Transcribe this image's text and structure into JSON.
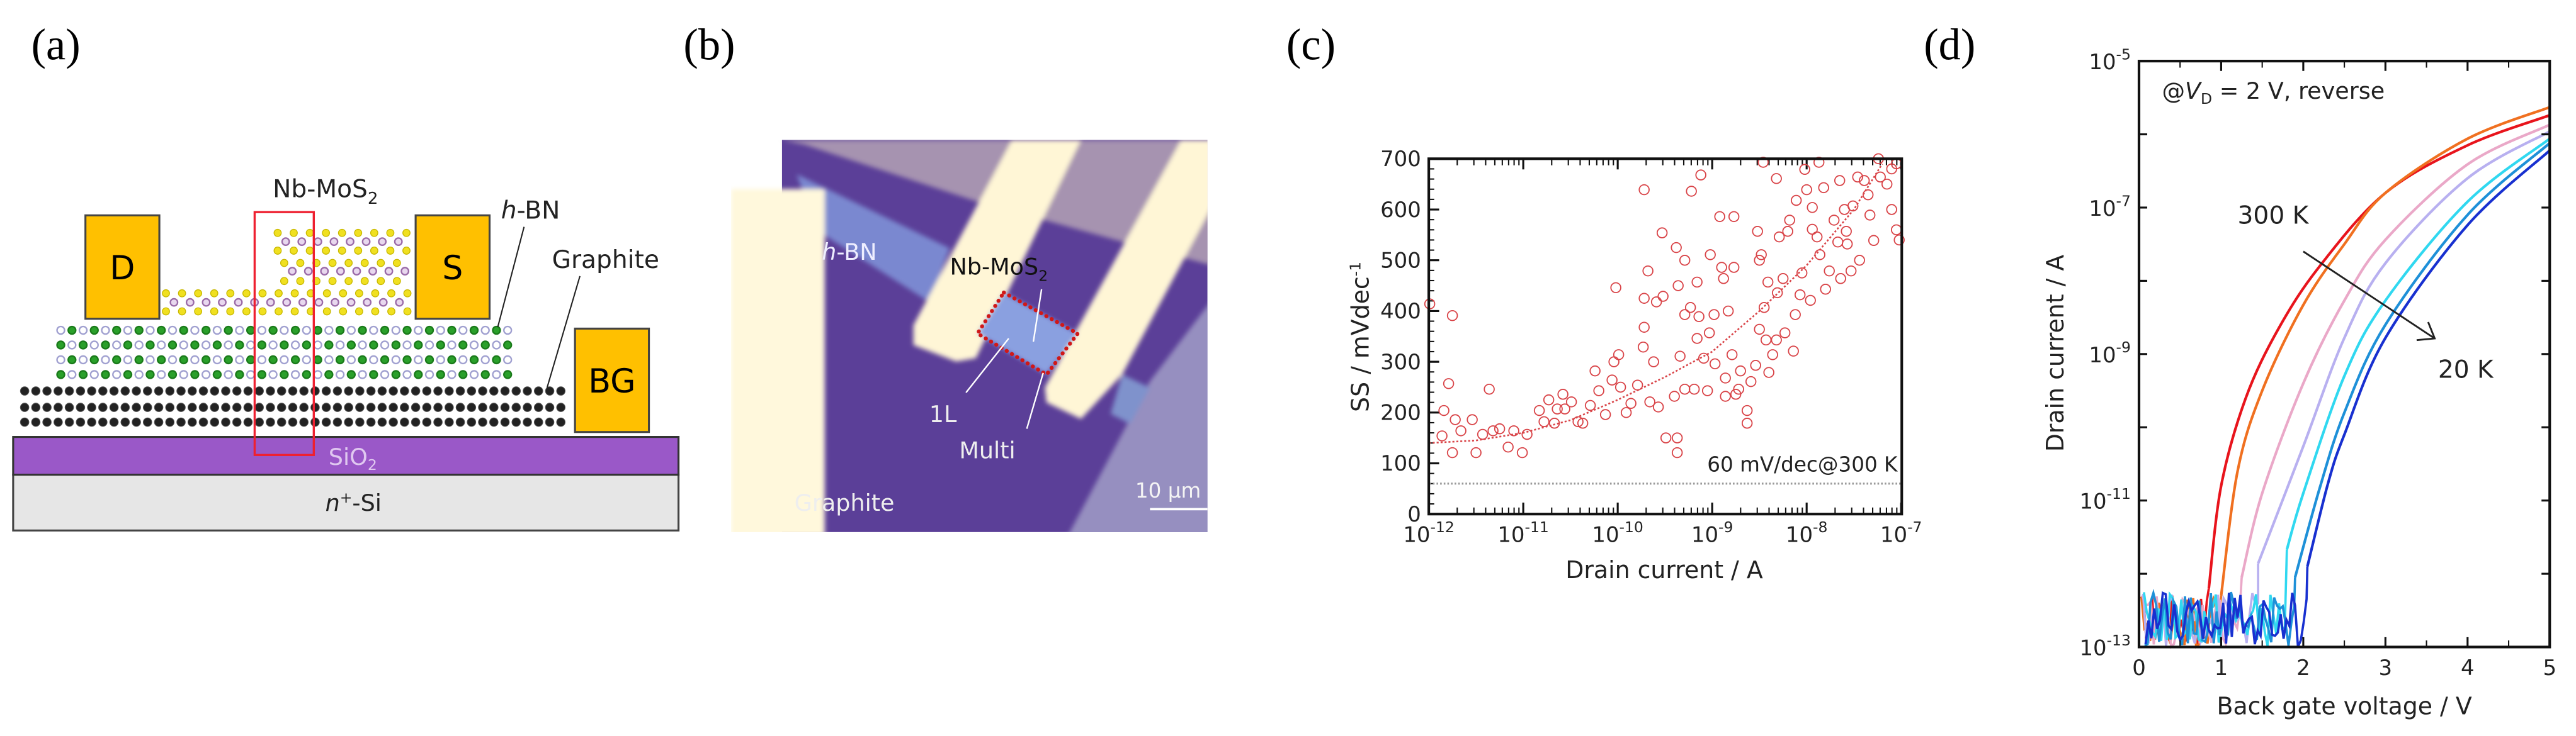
{
  "panels": {
    "a": {
      "label": "(a)",
      "contact_drain": "D",
      "contact_source": "S",
      "contact_backgate": "BG",
      "nb_mos2": {
        "main": "Nb-MoS",
        "sub": "2"
      },
      "hbn": {
        "italic": "h",
        "rest": "-BN"
      },
      "graphite": "Graphite",
      "sio2": {
        "main": "SiO",
        "sub": "2"
      },
      "substrate": {
        "italic": "n",
        "sup": "+",
        "rest": "-Si"
      },
      "colors": {
        "contact": "#ffc000",
        "sio2": "#9a58c8",
        "substrate": "#e6e6e6",
        "highlight": "#ee2030"
      }
    },
    "b": {
      "label": "(b)",
      "hbn": {
        "italic": "h",
        "rest": "-BN"
      },
      "nb_mos2": {
        "main": "Nb-MoS",
        "sub": "2"
      },
      "monolayer": "1L",
      "multilayer": "Multi",
      "graphite": "Graphite",
      "scale_bar": "10 μm"
    },
    "c": {
      "label": "(c)"
    },
    "d": {
      "label": "(d)"
    }
  },
  "chart_data": [
    {
      "panel": "c",
      "type": "scatter",
      "xlabel": "Drain current / A",
      "ylabel": {
        "main": "SS / mVdec",
        "sup": "-1"
      },
      "xscale": "log",
      "xlim_log10": [
        -12,
        -7
      ],
      "ylim": [
        0,
        700
      ],
      "yticks": [
        0,
        100,
        200,
        300,
        400,
        500,
        600,
        700
      ],
      "xticks": [
        {
          "base": "10",
          "exp": "-12"
        },
        {
          "base": "10",
          "exp": "-11"
        },
        {
          "base": "10",
          "exp": "-10"
        },
        {
          "base": "10",
          "exp": "-9"
        },
        {
          "base": "10",
          "exp": "-8"
        },
        {
          "base": "10",
          "exp": "-7"
        }
      ],
      "marker_color": "#d94448",
      "reference_line": {
        "value": 60,
        "label": "60 mV/dec@300 K",
        "color": "#999999"
      },
      "points_log10I_SS": [
        [
          -11.99,
          414
        ],
        [
          -11.86,
          154
        ],
        [
          -11.84,
          204
        ],
        [
          -11.79,
          257
        ],
        [
          -11.75,
          391
        ],
        [
          -11.75,
          121
        ],
        [
          -11.72,
          186
        ],
        [
          -11.66,
          164
        ],
        [
          -11.54,
          186
        ],
        [
          -11.5,
          121
        ],
        [
          -11.43,
          157
        ],
        [
          -11.36,
          246
        ],
        [
          -11.32,
          164
        ],
        [
          -11.25,
          168
        ],
        [
          -11.16,
          132
        ],
        [
          -11.1,
          164
        ],
        [
          -11.01,
          121
        ],
        [
          -10.96,
          157
        ],
        [
          -10.83,
          204
        ],
        [
          -10.78,
          182
        ],
        [
          -10.73,
          225
        ],
        [
          -10.67,
          179
        ],
        [
          -10.64,
          207
        ],
        [
          -10.58,
          236
        ],
        [
          -10.56,
          207
        ],
        [
          -10.49,
          221
        ],
        [
          -10.42,
          182
        ],
        [
          -10.37,
          179
        ],
        [
          -10.29,
          214
        ],
        [
          -10.24,
          282
        ],
        [
          -10.2,
          243
        ],
        [
          -10.13,
          196
        ],
        [
          -10.06,
          264
        ],
        [
          -10.04,
          300
        ],
        [
          -10.02,
          446
        ],
        [
          -9.99,
          314
        ],
        [
          -9.97,
          250
        ],
        [
          -9.91,
          200
        ],
        [
          -9.86,
          218
        ],
        [
          -9.79,
          254
        ],
        [
          -9.73,
          329
        ],
        [
          -9.72,
          639
        ],
        [
          -9.72,
          368
        ],
        [
          -9.72,
          425
        ],
        [
          -9.68,
          479
        ],
        [
          -9.66,
          221
        ],
        [
          -9.62,
          300
        ],
        [
          -9.59,
          418
        ],
        [
          -9.57,
          211
        ],
        [
          -9.53,
          554
        ],
        [
          -9.52,
          429
        ],
        [
          -9.49,
          150
        ],
        [
          -9.37,
          150
        ],
        [
          -9.37,
          121
        ],
        [
          -9.4,
          232
        ],
        [
          -9.36,
          450
        ],
        [
          -9.38,
          525
        ],
        [
          -9.34,
          311
        ],
        [
          -9.29,
          246
        ],
        [
          -9.29,
          500
        ],
        [
          -9.29,
          393
        ],
        [
          -9.23,
          407
        ],
        [
          -9.22,
          636
        ],
        [
          -9.19,
          246
        ],
        [
          -9.16,
          457
        ],
        [
          -9.14,
          389
        ],
        [
          -9.12,
          668
        ],
        [
          -9.16,
          346
        ],
        [
          -9.09,
          307
        ],
        [
          -9.05,
          243
        ],
        [
          -9.03,
          357
        ],
        [
          -9.02,
          511
        ],
        [
          -8.98,
          393
        ],
        [
          -8.97,
          296
        ],
        [
          -8.92,
          586
        ],
        [
          -8.9,
          486
        ],
        [
          -8.88,
          464
        ],
        [
          -8.86,
          268
        ],
        [
          -8.86,
          232
        ],
        [
          -8.83,
          400
        ],
        [
          -8.79,
          314
        ],
        [
          -8.77,
          586
        ],
        [
          -8.77,
          486
        ],
        [
          -8.75,
          236
        ],
        [
          -8.72,
          246
        ],
        [
          -8.7,
          282
        ],
        [
          -8.63,
          204
        ],
        [
          -8.63,
          179
        ],
        [
          -8.59,
          261
        ],
        [
          -8.54,
          293
        ],
        [
          -8.52,
          557
        ],
        [
          -8.5,
          500
        ],
        [
          -8.48,
          511
        ],
        [
          -8.5,
          364
        ],
        [
          -8.46,
          693
        ],
        [
          -8.45,
          407
        ],
        [
          -8.43,
          343
        ],
        [
          -8.41,
          457
        ],
        [
          -8.4,
          279
        ],
        [
          -8.36,
          314
        ],
        [
          -8.32,
          661
        ],
        [
          -8.32,
          343
        ],
        [
          -8.31,
          436
        ],
        [
          -8.29,
          546
        ],
        [
          -8.25,
          464
        ],
        [
          -8.23,
          357
        ],
        [
          -8.2,
          557
        ],
        [
          -8.18,
          579
        ],
        [
          -8.14,
          321
        ],
        [
          -8.12,
          393
        ],
        [
          -8.11,
          618
        ],
        [
          -8.07,
          432
        ],
        [
          -8.05,
          475
        ],
        [
          -8.02,
          679
        ],
        [
          -8.0,
          639
        ],
        [
          -7.96,
          421
        ],
        [
          -7.94,
          604
        ],
        [
          -7.94,
          561
        ],
        [
          -7.89,
          546
        ],
        [
          -7.87,
          693
        ],
        [
          -7.86,
          511
        ],
        [
          -7.82,
          643
        ],
        [
          -7.8,
          443
        ],
        [
          -7.76,
          479
        ],
        [
          -7.71,
          579
        ],
        [
          -7.67,
          536
        ],
        [
          -7.65,
          657
        ],
        [
          -7.64,
          464
        ],
        [
          -7.6,
          600
        ],
        [
          -7.58,
          557
        ],
        [
          -7.57,
          532
        ],
        [
          -7.53,
          479
        ],
        [
          -7.51,
          607
        ],
        [
          -7.46,
          664
        ],
        [
          -7.44,
          500
        ],
        [
          -7.39,
          657
        ],
        [
          -7.35,
          629
        ],
        [
          -7.33,
          589
        ],
        [
          -7.29,
          539
        ],
        [
          -7.24,
          700
        ],
        [
          -7.22,
          664
        ],
        [
          -7.15,
          650
        ],
        [
          -7.1,
          600
        ],
        [
          -7.05,
          690
        ],
        [
          -7.02,
          540
        ],
        [
          -7.1,
          680
        ],
        [
          -7.05,
          560
        ]
      ],
      "fit_log10I_SS": [
        [
          -12,
          140
        ],
        [
          -11.5,
          145
        ],
        [
          -11,
          160
        ],
        [
          -10.5,
          185
        ],
        [
          -10,
          225
        ],
        [
          -9.5,
          270
        ],
        [
          -9,
          320
        ],
        [
          -8.5,
          400
        ],
        [
          -8,
          490
        ],
        [
          -7.5,
          600
        ],
        [
          -7.2,
          690
        ]
      ]
    },
    {
      "panel": "d",
      "type": "line",
      "xlabel": "Back gate voltage / V",
      "ylabel": "Drain current / A",
      "xlim": [
        0,
        5
      ],
      "ylim_log10": [
        -13,
        -5
      ],
      "xticks": [
        "0",
        "1",
        "2",
        "3",
        "4",
        "5"
      ],
      "yticks": [
        {
          "base": "10",
          "exp": "-5"
        },
        {
          "base": "10",
          "exp": "-7"
        },
        {
          "base": "10",
          "exp": "-9"
        },
        {
          "base": "10",
          "exp": "-11"
        },
        {
          "base": "10",
          "exp": "-13"
        }
      ],
      "condition": {
        "prefix": "@",
        "italic": "V",
        "sub": "D",
        "rest": " = 2 V, reverse"
      },
      "annotation_high": "300 K",
      "annotation_low": "20 K",
      "noise_floor_log10": [
        -13,
        -12.25
      ],
      "series": [
        {
          "color": "#e8141c",
          "points_V_log10I": [
            [
              0.85,
              -12.2
            ],
            [
              1.0,
              -10.8
            ],
            [
              1.3,
              -9.6
            ],
            [
              1.7,
              -8.65
            ],
            [
              2.2,
              -7.8
            ],
            [
              3.0,
              -6.8
            ],
            [
              4.0,
              -6.15
            ],
            [
              5.0,
              -5.74
            ]
          ]
        },
        {
          "color": "#f07020",
          "points_V_log10I": [
            [
              1.0,
              -12.3
            ],
            [
              1.2,
              -10.6
            ],
            [
              1.5,
              -9.5
            ],
            [
              2.0,
              -8.33
            ],
            [
              2.5,
              -7.5
            ],
            [
              3.0,
              -6.8
            ],
            [
              4.0,
              -6.06
            ],
            [
              5.0,
              -5.63
            ]
          ]
        },
        {
          "color": "#eaa8c8",
          "points_V_log10I": [
            [
              1.25,
              -12.05
            ],
            [
              1.5,
              -10.9
            ],
            [
              2.0,
              -9.4
            ],
            [
              2.5,
              -8.27
            ],
            [
              3.0,
              -7.44
            ],
            [
              4.0,
              -6.41
            ],
            [
              5.0,
              -5.87
            ]
          ]
        },
        {
          "color": "#b8b0f0",
          "points_V_log10I": [
            [
              1.45,
              -11.86
            ],
            [
              2.0,
              -10.26
            ],
            [
              2.5,
              -8.78
            ],
            [
              3.0,
              -7.76
            ],
            [
              4.0,
              -6.6
            ],
            [
              5.0,
              -5.96
            ]
          ]
        },
        {
          "color": "#30d8f0",
          "points_V_log10I": [
            [
              1.8,
              -11.67
            ],
            [
              2.0,
              -10.9
            ],
            [
              2.5,
              -9.3
            ],
            [
              3.0,
              -8.27
            ],
            [
              4.0,
              -6.92
            ],
            [
              5.0,
              -6.06
            ]
          ]
        },
        {
          "color": "#1e90d8",
          "points_V_log10I": [
            [
              1.9,
              -12.05
            ],
            [
              2.2,
              -10.83
            ],
            [
              2.5,
              -9.8
            ],
            [
              3.0,
              -8.6
            ],
            [
              4.0,
              -7.1
            ],
            [
              5.0,
              -6.12
            ]
          ]
        },
        {
          "color": "#1830d0",
          "points_V_log10I": [
            [
              2.05,
              -11.9
            ],
            [
              2.3,
              -10.77
            ],
            [
              2.5,
              -10.1
            ],
            [
              3.0,
              -8.78
            ],
            [
              4.0,
              -7.24
            ],
            [
              5.0,
              -6.22
            ]
          ]
        }
      ]
    }
  ]
}
